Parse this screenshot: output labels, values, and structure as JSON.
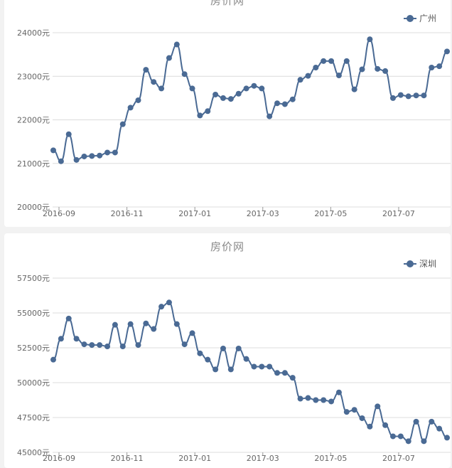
{
  "chart_data": [
    {
      "type": "line",
      "title": "房价网",
      "series": [
        {
          "name": "广州",
          "color": "#4a6a94"
        }
      ],
      "values": [
        21300,
        21050,
        21670,
        21080,
        21160,
        21170,
        21180,
        21250,
        21250,
        21900,
        22280,
        22450,
        23150,
        22870,
        22720,
        23420,
        23730,
        23050,
        22720,
        22100,
        22200,
        22580,
        22500,
        22480,
        22600,
        22720,
        22780,
        22720,
        22080,
        22380,
        22360,
        22470,
        22920,
        23010,
        23200,
        23350,
        23350,
        23020,
        23350,
        22700,
        23160,
        23850,
        23170,
        23120,
        22500,
        22570,
        22540,
        22560,
        22560,
        23200,
        23230,
        23570
      ],
      "yticks": [
        "24000元",
        "23000元",
        "22000元",
        "21000元",
        "20000元"
      ],
      "ytick_values": [
        24000,
        23000,
        22000,
        21000,
        20000
      ],
      "ylim": [
        20000,
        24000
      ],
      "xticks": [
        "2016-09",
        "2016-11",
        "2017-01",
        "2017-03",
        "2017-05",
        "2017-07"
      ],
      "xtick_index": [
        0,
        8.8,
        17.6,
        26.4,
        35.2,
        44
      ],
      "legend": "top-right",
      "grid": true
    },
    {
      "type": "line",
      "title": "房价网",
      "series": [
        {
          "name": "深圳",
          "color": "#4a6a94"
        }
      ],
      "values": [
        51650,
        53150,
        54600,
        53150,
        52750,
        52700,
        52700,
        52600,
        54150,
        52600,
        54200,
        52700,
        54250,
        53850,
        55450,
        55750,
        54200,
        52750,
        53550,
        52100,
        51650,
        50950,
        52450,
        50950,
        52450,
        51700,
        51150,
        51150,
        51150,
        50700,
        50700,
        50350,
        48850,
        48900,
        48750,
        48750,
        48650,
        49300,
        47900,
        48050,
        47450,
        46850,
        48300,
        46950,
        46150,
        46150,
        45800,
        47200,
        45800,
        47200,
        46700,
        46050
      ],
      "yticks": [
        "57500元",
        "55000元",
        "52500元",
        "50000元",
        "47500元",
        "45000元"
      ],
      "ytick_values": [
        57500,
        55000,
        52500,
        50000,
        47500,
        45000
      ],
      "ylim": [
        45000,
        57500
      ],
      "xticks": [
        "2016-09",
        "2016-11",
        "2017-01",
        "2017-03",
        "2017-05",
        "2017-07"
      ],
      "xtick_index": [
        0,
        8.8,
        17.6,
        26.4,
        35.2,
        44
      ],
      "legend": "top-right",
      "grid": true
    }
  ]
}
